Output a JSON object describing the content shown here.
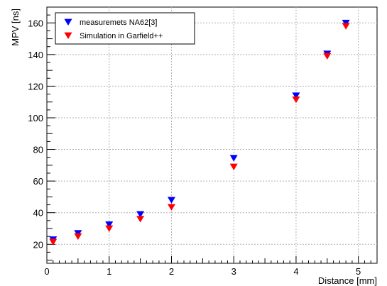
{
  "chart_data": {
    "type": "scatter",
    "title": "",
    "xlabel": "Distance [mm]",
    "ylabel": "MPV [ns]",
    "xlim": [
      0,
      5.3
    ],
    "ylim": [
      8,
      170
    ],
    "xticks": [
      0,
      1,
      2,
      3,
      4,
      5
    ],
    "yticks": [
      20,
      40,
      60,
      80,
      100,
      120,
      140,
      160
    ],
    "grid": true,
    "legend_position": "top-left",
    "series": [
      {
        "name": "measuremets NA62[3]",
        "color": "#0000ff",
        "marker": "triangle-down",
        "x": [
          0.1,
          0.5,
          1.0,
          1.5,
          2.0,
          3.0,
          4.0,
          4.5,
          4.8
        ],
        "y": [
          23,
          27,
          32.5,
          39,
          48,
          74.5,
          114,
          140.5,
          160
        ]
      },
      {
        "name": "Simulation in Garfield++",
        "color": "#ff0000",
        "marker": "triangle-down",
        "x": [
          0.1,
          0.5,
          1.0,
          1.5,
          2.0,
          3.0,
          4.0,
          4.5,
          4.8
        ],
        "y": [
          21.5,
          25,
          30,
          36,
          43.5,
          69,
          111.5,
          139,
          158
        ]
      }
    ]
  }
}
